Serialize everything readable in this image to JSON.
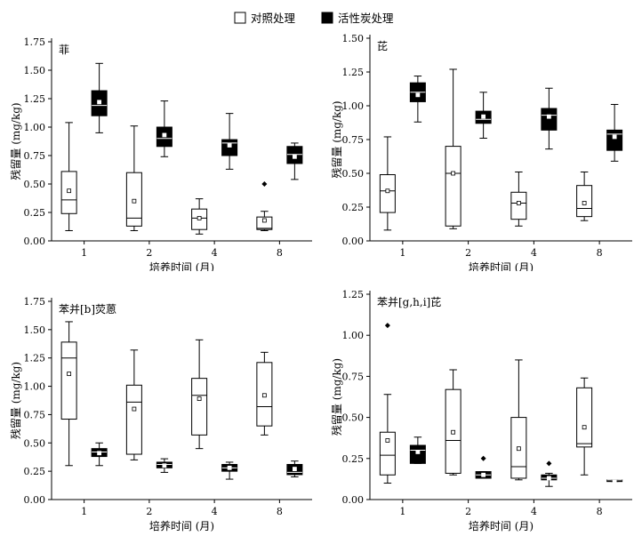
{
  "legend": {
    "items": [
      {
        "label": "对照处理",
        "fill": "#ffffff"
      },
      {
        "label": "活性炭处理",
        "fill": "#000000"
      }
    ]
  },
  "colors": {
    "control": "#ffffff",
    "treated": "#000000",
    "stroke": "#000000",
    "mean_marker": "#ffffff"
  },
  "chart_data": [
    {
      "type": "box",
      "title": "菲",
      "xlabel": "培养时间 (月)",
      "ylabel": "残留量 (mg/kg)",
      "categories": [
        "1",
        "2",
        "4",
        "8"
      ],
      "ylim": [
        0,
        1.75
      ],
      "yticks": [
        "0.00",
        "0.25",
        "0.50",
        "0.75",
        "1.00",
        "1.25",
        "1.50",
        "1.75"
      ],
      "series": [
        {
          "name": "对照处理",
          "boxes": [
            {
              "min": 0.09,
              "q1": 0.24,
              "median": 0.36,
              "q3": 0.61,
              "max": 1.04,
              "mean": 0.44,
              "outliers": []
            },
            {
              "min": 0.09,
              "q1": 0.13,
              "median": 0.2,
              "q3": 0.6,
              "max": 1.01,
              "mean": 0.35,
              "outliers": []
            },
            {
              "min": 0.06,
              "q1": 0.1,
              "median": 0.2,
              "q3": 0.28,
              "max": 0.37,
              "mean": 0.2,
              "outliers": []
            },
            {
              "min": 0.09,
              "q1": 0.1,
              "median": 0.11,
              "q3": 0.21,
              "max": 0.26,
              "mean": 0.18,
              "outliers": [
                0.5
              ]
            }
          ]
        },
        {
          "name": "活性炭处理",
          "boxes": [
            {
              "min": 0.95,
              "q1": 1.1,
              "median": 1.19,
              "q3": 1.32,
              "max": 1.56,
              "mean": 1.22,
              "outliers": []
            },
            {
              "min": 0.74,
              "q1": 0.83,
              "median": 0.9,
              "q3": 1.0,
              "max": 1.23,
              "mean": 0.93,
              "outliers": []
            },
            {
              "min": 0.63,
              "q1": 0.75,
              "median": 0.86,
              "q3": 0.89,
              "max": 1.12,
              "mean": 0.84,
              "outliers": []
            },
            {
              "min": 0.54,
              "q1": 0.68,
              "median": 0.76,
              "q3": 0.83,
              "max": 0.86,
              "mean": 0.74,
              "outliers": []
            }
          ]
        }
      ]
    },
    {
      "type": "box",
      "title": "芘",
      "xlabel": "培养时间 (月)",
      "ylabel": "残留量 (mg/kg)",
      "categories": [
        "1",
        "2",
        "4",
        "8"
      ],
      "ylim": [
        0,
        1.5
      ],
      "yticks": [
        "0.00",
        "0.25",
        "0.50",
        "0.75",
        "1.00",
        "1.25",
        "1.50"
      ],
      "series": [
        {
          "name": "对照处理",
          "boxes": [
            {
              "min": 0.08,
              "q1": 0.21,
              "median": 0.37,
              "q3": 0.49,
              "max": 0.77,
              "mean": 0.37,
              "outliers": []
            },
            {
              "min": 0.09,
              "q1": 0.11,
              "median": 0.5,
              "q3": 0.7,
              "max": 1.27,
              "mean": 0.5,
              "outliers": []
            },
            {
              "min": 0.11,
              "q1": 0.16,
              "median": 0.28,
              "q3": 0.36,
              "max": 0.51,
              "mean": 0.28,
              "outliers": []
            },
            {
              "min": 0.15,
              "q1": 0.18,
              "median": 0.24,
              "q3": 0.41,
              "max": 0.51,
              "mean": 0.28,
              "outliers": []
            }
          ]
        },
        {
          "name": "活性炭处理",
          "boxes": [
            {
              "min": 0.88,
              "q1": 1.03,
              "median": 1.1,
              "q3": 1.17,
              "max": 1.22,
              "mean": 1.08,
              "outliers": []
            },
            {
              "min": 0.76,
              "q1": 0.87,
              "median": 0.9,
              "q3": 0.96,
              "max": 1.1,
              "mean": 0.92,
              "outliers": []
            },
            {
              "min": 0.68,
              "q1": 0.82,
              "median": 0.93,
              "q3": 0.98,
              "max": 1.13,
              "mean": 0.92,
              "outliers": []
            },
            {
              "min": 0.59,
              "q1": 0.67,
              "median": 0.79,
              "q3": 0.82,
              "max": 1.01,
              "mean": 0.77,
              "outliers": []
            }
          ]
        }
      ]
    },
    {
      "type": "box",
      "title": "苯并[b]荧蒽",
      "xlabel": "培养时间 (月)",
      "ylabel": "残留量 (mg/kg)",
      "categories": [
        "1",
        "2",
        "4",
        "8"
      ],
      "ylim": [
        0,
        1.75
      ],
      "yticks": [
        "0.00",
        "0.25",
        "0.50",
        "0.75",
        "1.00",
        "1.25",
        "1.50",
        "1.75"
      ],
      "series": [
        {
          "name": "对照处理",
          "boxes": [
            {
              "min": 0.3,
              "q1": 0.71,
              "median": 1.25,
              "q3": 1.39,
              "max": 1.57,
              "mean": 1.11,
              "outliers": []
            },
            {
              "min": 0.35,
              "q1": 0.4,
              "median": 0.86,
              "q3": 1.01,
              "max": 1.32,
              "mean": 0.8,
              "outliers": []
            },
            {
              "min": 0.45,
              "q1": 0.57,
              "median": 0.92,
              "q3": 1.07,
              "max": 1.41,
              "mean": 0.89,
              "outliers": []
            },
            {
              "min": 0.57,
              "q1": 0.65,
              "median": 0.82,
              "q3": 1.21,
              "max": 1.3,
              "mean": 0.92,
              "outliers": []
            }
          ]
        },
        {
          "name": "活性炭处理",
          "boxes": [
            {
              "min": 0.3,
              "q1": 0.38,
              "median": 0.42,
              "q3": 0.45,
              "max": 0.5,
              "mean": 0.41,
              "outliers": []
            },
            {
              "min": 0.24,
              "q1": 0.28,
              "median": 0.31,
              "q3": 0.33,
              "max": 0.36,
              "mean": 0.3,
              "outliers": []
            },
            {
              "min": 0.18,
              "q1": 0.25,
              "median": 0.28,
              "q3": 0.31,
              "max": 0.33,
              "mean": 0.28,
              "outliers": []
            },
            {
              "min": 0.2,
              "q1": 0.22,
              "median": 0.24,
              "q3": 0.31,
              "max": 0.34,
              "mean": 0.27,
              "outliers": []
            }
          ]
        }
      ]
    },
    {
      "type": "box",
      "title": "苯并[g,h,i]芘",
      "xlabel": "培养时间 (月)",
      "ylabel": "残留量 (mg/kg)",
      "categories": [
        "1",
        "2",
        "4",
        "8"
      ],
      "ylim": [
        0,
        1.25
      ],
      "yticks": [
        "0.00",
        "0.25",
        "0.50",
        "0.75",
        "1.00",
        "1.25"
      ],
      "series": [
        {
          "name": "对照处理",
          "boxes": [
            {
              "min": 0.1,
              "q1": 0.15,
              "median": 0.27,
              "q3": 0.41,
              "max": 0.64,
              "mean": 0.36,
              "outliers": [
                1.06
              ]
            },
            {
              "min": 0.15,
              "q1": 0.16,
              "median": 0.36,
              "q3": 0.67,
              "max": 0.79,
              "mean": 0.41,
              "outliers": []
            },
            {
              "min": 0.12,
              "q1": 0.13,
              "median": 0.2,
              "q3": 0.5,
              "max": 0.85,
              "mean": 0.31,
              "outliers": []
            },
            {
              "min": 0.15,
              "q1": 0.32,
              "median": 0.34,
              "q3": 0.68,
              "max": 0.74,
              "mean": 0.44,
              "outliers": []
            }
          ]
        },
        {
          "name": "活性炭处理",
          "boxes": [
            {
              "min": 0.22,
              "q1": 0.22,
              "median": 0.3,
              "q3": 0.33,
              "max": 0.38,
              "mean": 0.29,
              "outliers": []
            },
            {
              "min": 0.13,
              "q1": 0.13,
              "median": 0.15,
              "q3": 0.17,
              "max": 0.17,
              "mean": 0.15,
              "outliers": [
                0.25
              ]
            },
            {
              "min": 0.08,
              "q1": 0.12,
              "median": 0.13,
              "q3": 0.15,
              "max": 0.16,
              "mean": 0.13,
              "outliers": [
                0.22
              ]
            },
            {
              "min": 0.11,
              "q1": 0.11,
              "median": 0.12,
              "q3": 0.12,
              "max": 0.12,
              "mean": 0.11,
              "outliers": []
            }
          ]
        }
      ]
    }
  ]
}
